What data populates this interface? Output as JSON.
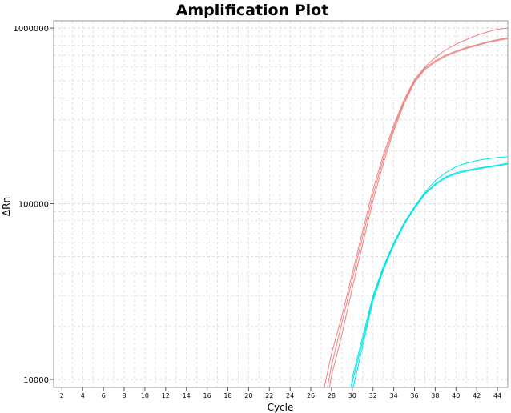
{
  "chart_data": {
    "type": "line",
    "title": "Amplification Plot",
    "xlabel": "Cycle",
    "ylabel": "ΔRn",
    "x_ticks": [
      2,
      4,
      6,
      8,
      10,
      12,
      14,
      16,
      18,
      20,
      22,
      24,
      26,
      28,
      30,
      32,
      34,
      36,
      38,
      40,
      42,
      44
    ],
    "y_ticks": [
      10000,
      100000,
      1000000
    ],
    "y_tick_labels": [
      "10000",
      "100000",
      "1000000"
    ],
    "xlim": [
      1.2,
      45
    ],
    "ylim": [
      9000,
      1100000
    ],
    "y_scale": "log",
    "grid": true,
    "series": [
      {
        "color": "#f08080",
        "x": [
          27.3,
          28,
          29,
          30,
          31,
          32,
          33,
          34,
          35,
          36,
          37,
          38,
          39,
          40,
          41,
          42,
          43,
          44,
          45
        ],
        "y": [
          9000,
          14000,
          23000,
          40000,
          70000,
          120000,
          190000,
          280000,
          390000,
          510000,
          600000,
          680000,
          750000,
          810000,
          860000,
          910000,
          950000,
          985000,
          1000000
        ]
      },
      {
        "color": "#f08080",
        "x": [
          27.6,
          28,
          29,
          30,
          31,
          32,
          33,
          34,
          35,
          36,
          37,
          38,
          39,
          40,
          41,
          42,
          43,
          44,
          45
        ],
        "y": [
          9000,
          12000,
          21000,
          37000,
          65000,
          112000,
          180000,
          270000,
          380000,
          500000,
          590000,
          650000,
          700000,
          740000,
          775000,
          805000,
          835000,
          860000,
          880000
        ]
      },
      {
        "color": "#f08080",
        "x": [
          27.8,
          28,
          29,
          30,
          31,
          32,
          33,
          34,
          35,
          36,
          37,
          38,
          39,
          40,
          41,
          42,
          43,
          44,
          45
        ],
        "y": [
          9000,
          10500,
          18000,
          33000,
          59000,
          104000,
          170000,
          260000,
          370000,
          490000,
          580000,
          640000,
          690000,
          730000,
          765000,
          795000,
          825000,
          850000,
          870000
        ]
      },
      {
        "color": "#00e5e5",
        "x": [
          29.9,
          30,
          31,
          32,
          33,
          34,
          35,
          36,
          37,
          38,
          39,
          40,
          41,
          42,
          43,
          44,
          45
        ],
        "y": [
          9000,
          10200,
          17500,
          30000,
          44000,
          60000,
          78000,
          96000,
          116000,
          135000,
          150000,
          162000,
          170000,
          176000,
          180000,
          183000,
          185000
        ]
      },
      {
        "color": "#00e5e5",
        "x": [
          30.0,
          30,
          31,
          32,
          33,
          34,
          35,
          36,
          37,
          38,
          39,
          40,
          41,
          42,
          43,
          44,
          45
        ],
        "y": [
          9000,
          9600,
          16500,
          29000,
          43000,
          59000,
          77000,
          95000,
          114000,
          130000,
          142000,
          150000,
          155000,
          159000,
          162000,
          166000,
          170000
        ]
      },
      {
        "color": "#00e5e5",
        "x": [
          30.1,
          31,
          32,
          33,
          34,
          35,
          36,
          37,
          38,
          39,
          40,
          41,
          42,
          43,
          44,
          45
        ],
        "y": [
          9000,
          15500,
          28000,
          42000,
          58000,
          76000,
          94000,
          113000,
          128000,
          140000,
          148000,
          153000,
          157000,
          161000,
          164000,
          168000
        ]
      }
    ]
  }
}
